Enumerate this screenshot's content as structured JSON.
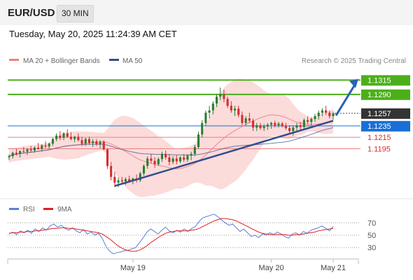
{
  "header": {
    "symbol": "EUR/USD",
    "interval": "30 MIN",
    "datetime": "Tuesday, May 20, 2025 11:24:39 AM CET"
  },
  "legend": {
    "bollinger": {
      "label": "MA 20 + Bollinger Bands",
      "color": "#f08080"
    },
    "ma50": {
      "label": "MA 50",
      "color": "#2f4f8f"
    },
    "copyright": "Research © 2025 Trading Central"
  },
  "rsi_legend": {
    "rsi": {
      "label": "RSI",
      "color": "#5b7fd6"
    },
    "ma9": {
      "label": "9MA",
      "color": "#e02020"
    }
  },
  "colors": {
    "up": "#2e7d32",
    "down": "#d32f2f",
    "resistance": "#4caf1a",
    "pivot": "#1a6fd6",
    "support": "#e88080",
    "trend": "#2f4f8f",
    "band": "#fbd5d5",
    "last": "#333333"
  },
  "chart_data": [
    {
      "type": "line",
      "x_ticks": [
        "May 19",
        "May 20",
        "May 21"
      ],
      "ylim": [
        1.1115,
        1.1335
      ],
      "levels": [
        {
          "name": "resistance",
          "value": "1.1315"
        },
        {
          "name": "resistance",
          "value": "1.1290"
        },
        {
          "name": "last",
          "value": "1.1257"
        },
        {
          "name": "pivot",
          "value": "1.1235"
        },
        {
          "name": "support",
          "value": "1.1215"
        },
        {
          "name": "support",
          "value": "1.1195"
        }
      ],
      "candles": [
        [
          1.118,
          1.1185,
          1.1175,
          1.1182
        ],
        [
          1.1182,
          1.119,
          1.1178,
          1.1188
        ],
        [
          1.1188,
          1.1195,
          1.1183,
          1.1186
        ],
        [
          1.1186,
          1.1192,
          1.118,
          1.1191
        ],
        [
          1.1191,
          1.1198,
          1.1187,
          1.119
        ],
        [
          1.119,
          1.1196,
          1.1184,
          1.1194
        ],
        [
          1.1194,
          1.12,
          1.1189,
          1.1192
        ],
        [
          1.1192,
          1.1199,
          1.1188,
          1.1197
        ],
        [
          1.1197,
          1.1205,
          1.1193,
          1.1195
        ],
        [
          1.1195,
          1.1203,
          1.119,
          1.1201
        ],
        [
          1.1201,
          1.1208,
          1.1196,
          1.1199
        ],
        [
          1.1199,
          1.1206,
          1.1195,
          1.1204
        ],
        [
          1.1204,
          1.1214,
          1.12,
          1.1212
        ],
        [
          1.1212,
          1.1222,
          1.1208,
          1.1218
        ],
        [
          1.1218,
          1.1226,
          1.121,
          1.1214
        ],
        [
          1.1214,
          1.1224,
          1.121,
          1.1222
        ],
        [
          1.1222,
          1.1229,
          1.1214,
          1.1216
        ],
        [
          1.1216,
          1.1224,
          1.121,
          1.1212
        ],
        [
          1.1212,
          1.1218,
          1.1206,
          1.1216
        ],
        [
          1.1216,
          1.1222,
          1.1208,
          1.121
        ],
        [
          1.121,
          1.1216,
          1.12,
          1.1204
        ],
        [
          1.1204,
          1.1214,
          1.12,
          1.1212
        ],
        [
          1.1212,
          1.1216,
          1.1202,
          1.1205
        ],
        [
          1.1205,
          1.1212,
          1.1198,
          1.1208
        ],
        [
          1.1208,
          1.1212,
          1.12,
          1.1203
        ],
        [
          1.1203,
          1.121,
          1.1196,
          1.1207
        ],
        [
          1.1207,
          1.121,
          1.1192,
          1.1194
        ],
        [
          1.1194,
          1.1196,
          1.116,
          1.1165
        ],
        [
          1.1165,
          1.1172,
          1.114,
          1.1146
        ],
        [
          1.1146,
          1.1155,
          1.1128,
          1.1136
        ],
        [
          1.1136,
          1.1145,
          1.1128,
          1.114
        ],
        [
          1.114,
          1.1146,
          1.1134,
          1.1138
        ],
        [
          1.1138,
          1.1145,
          1.1132,
          1.1142
        ],
        [
          1.1142,
          1.1148,
          1.1136,
          1.1139
        ],
        [
          1.1139,
          1.1145,
          1.1133,
          1.1143
        ],
        [
          1.1143,
          1.115,
          1.1136,
          1.114
        ],
        [
          1.114,
          1.1155,
          1.1137,
          1.1152
        ],
        [
          1.1152,
          1.1168,
          1.1148,
          1.1165
        ],
        [
          1.1165,
          1.1182,
          1.116,
          1.1178
        ],
        [
          1.1178,
          1.1186,
          1.117,
          1.1174
        ],
        [
          1.1174,
          1.118,
          1.1162,
          1.1168
        ],
        [
          1.1168,
          1.118,
          1.1165,
          1.1177
        ],
        [
          1.1177,
          1.119,
          1.1172,
          1.1186
        ],
        [
          1.1186,
          1.1192,
          1.1176,
          1.118
        ],
        [
          1.118,
          1.1186,
          1.1166,
          1.1172
        ],
        [
          1.1172,
          1.1182,
          1.1168,
          1.1178
        ],
        [
          1.1178,
          1.1184,
          1.1168,
          1.1173
        ],
        [
          1.1173,
          1.1182,
          1.117,
          1.118
        ],
        [
          1.118,
          1.1186,
          1.1172,
          1.1176
        ],
        [
          1.1176,
          1.1186,
          1.1172,
          1.1183
        ],
        [
          1.1183,
          1.119,
          1.1175,
          1.1186
        ],
        [
          1.1186,
          1.1202,
          1.1182,
          1.1198
        ],
        [
          1.1198,
          1.1225,
          1.1195,
          1.122
        ],
        [
          1.122,
          1.1245,
          1.1215,
          1.124
        ],
        [
          1.124,
          1.1262,
          1.1235,
          1.1258
        ],
        [
          1.1258,
          1.127,
          1.1248,
          1.1262
        ],
        [
          1.1262,
          1.1278,
          1.1255,
          1.1274
        ],
        [
          1.1274,
          1.129,
          1.1268,
          1.1286
        ],
        [
          1.1286,
          1.1302,
          1.128,
          1.129
        ],
        [
          1.129,
          1.1298,
          1.1276,
          1.1282
        ],
        [
          1.1282,
          1.1286,
          1.1266,
          1.127
        ],
        [
          1.127,
          1.1278,
          1.1258,
          1.1262
        ],
        [
          1.1262,
          1.127,
          1.1252,
          1.1265
        ],
        [
          1.1265,
          1.127,
          1.125,
          1.1254
        ],
        [
          1.1254,
          1.126,
          1.1236,
          1.124
        ],
        [
          1.124,
          1.1252,
          1.1236,
          1.1248
        ],
        [
          1.1248,
          1.1258,
          1.124,
          1.1244
        ],
        [
          1.1244,
          1.1248,
          1.1226,
          1.1232
        ],
        [
          1.1232,
          1.124,
          1.1226,
          1.1236
        ],
        [
          1.1236,
          1.124,
          1.1228,
          1.1231
        ],
        [
          1.1231,
          1.1238,
          1.1226,
          1.1234
        ],
        [
          1.1234,
          1.124,
          1.1228,
          1.1237
        ],
        [
          1.1237,
          1.1242,
          1.123,
          1.124
        ],
        [
          1.124,
          1.1244,
          1.1232,
          1.1236
        ],
        [
          1.1236,
          1.1242,
          1.1232,
          1.1239
        ],
        [
          1.1239,
          1.1242,
          1.1232,
          1.1235
        ],
        [
          1.1235,
          1.124,
          1.1228,
          1.1231
        ],
        [
          1.1231,
          1.1236,
          1.1222,
          1.1226
        ],
        [
          1.1226,
          1.1236,
          1.1218,
          1.1232
        ],
        [
          1.1232,
          1.124,
          1.1226,
          1.1236
        ],
        [
          1.1236,
          1.1242,
          1.1228,
          1.1233
        ],
        [
          1.1233,
          1.1248,
          1.123,
          1.1245
        ],
        [
          1.1245,
          1.1252,
          1.1238,
          1.1242
        ],
        [
          1.1242,
          1.125,
          1.1236,
          1.1247
        ],
        [
          1.1247,
          1.1256,
          1.1242,
          1.1252
        ],
        [
          1.1252,
          1.1262,
          1.1246,
          1.1258
        ],
        [
          1.1258,
          1.1266,
          1.1252,
          1.1262
        ],
        [
          1.1262,
          1.127,
          1.1254,
          1.1258
        ],
        [
          1.1258,
          1.1262,
          1.1248,
          1.1252
        ],
        [
          1.1252,
          1.126,
          1.1246,
          1.1257
        ]
      ]
    },
    {
      "type": "line",
      "y_ticks": [
        "70",
        "50",
        "30"
      ],
      "ylim": [
        15,
        85
      ],
      "series": [
        {
          "name": "RSI",
          "values": [
            52,
            55,
            51,
            57,
            54,
            58,
            53,
            60,
            56,
            62,
            58,
            65,
            68,
            63,
            66,
            61,
            58,
            62,
            57,
            54,
            59,
            52,
            55,
            50,
            53,
            45,
            32,
            24,
            20,
            22,
            23,
            25,
            26,
            28,
            30,
            38,
            46,
            55,
            60,
            56,
            52,
            58,
            63,
            57,
            54,
            58,
            55,
            60,
            56,
            61,
            64,
            72,
            78,
            80,
            82,
            84,
            80,
            75,
            70,
            66,
            68,
            62,
            56,
            60,
            54,
            48,
            50,
            46,
            52,
            50,
            54,
            51,
            55,
            52,
            48,
            45,
            52,
            54,
            50,
            56,
            53,
            58,
            60,
            62,
            65,
            61,
            57,
            64
          ]
        },
        {
          "name": "9MA",
          "values": [
            53,
            54,
            54,
            55,
            55,
            56,
            56,
            57,
            57,
            58,
            59,
            60,
            61,
            61,
            62,
            62,
            61,
            61,
            60,
            59,
            58,
            57,
            56,
            55,
            54,
            52,
            48,
            44,
            39,
            34,
            30,
            27,
            25,
            24,
            24,
            26,
            29,
            33,
            38,
            42,
            46,
            50,
            53,
            55,
            56,
            57,
            57,
            57,
            57,
            58,
            59,
            61,
            64,
            67,
            70,
            73,
            75,
            77,
            77,
            76,
            75,
            73,
            70,
            67,
            64,
            61,
            58,
            55,
            53,
            52,
            51,
            51,
            51,
            51,
            51,
            50,
            50,
            51,
            51,
            52,
            53,
            54,
            55,
            57,
            58,
            59,
            60,
            61
          ]
        }
      ]
    }
  ]
}
